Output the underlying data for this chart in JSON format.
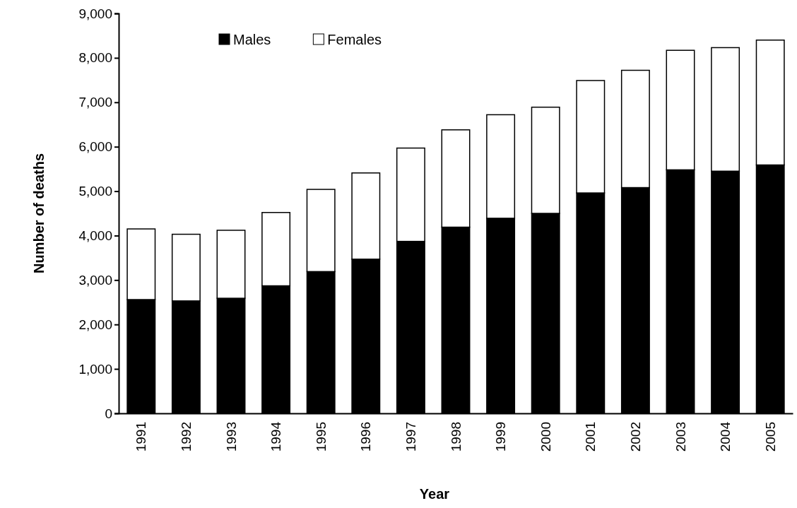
{
  "chart_data": {
    "type": "bar",
    "stacked": true,
    "xlabel": "Year",
    "ylabel": "Number of deaths",
    "categories": [
      "1991",
      "1992",
      "1993",
      "1994",
      "1995",
      "1996",
      "1997",
      "1998",
      "1999",
      "2000",
      "2001",
      "2002",
      "2003",
      "2004",
      "2005"
    ],
    "series": [
      {
        "name": "Males",
        "color": "#000000",
        "values": [
          2560,
          2530,
          2590,
          2870,
          3190,
          3470,
          3870,
          4190,
          4390,
          4500,
          4960,
          5080,
          5480,
          5450,
          5590
        ]
      },
      {
        "name": "Females",
        "color": "#ffffff",
        "values": [
          1590,
          1500,
          1530,
          1650,
          1850,
          1940,
          2100,
          2190,
          2330,
          2390,
          2530,
          2640,
          2690,
          2780,
          2810
        ]
      }
    ],
    "ylim": [
      0,
      9000
    ],
    "yticks": [
      {
        "value": 0,
        "label": "0"
      },
      {
        "value": 1000,
        "label": "1,000"
      },
      {
        "value": 2000,
        "label": "2,000"
      },
      {
        "value": 3000,
        "label": "3,000"
      },
      {
        "value": 4000,
        "label": "4,000"
      },
      {
        "value": 5000,
        "label": "5,000"
      },
      {
        "value": 6000,
        "label": "6,000"
      },
      {
        "value": 7000,
        "label": "7,000"
      },
      {
        "value": 8000,
        "label": "8,000"
      },
      {
        "value": 9000,
        "label": "9,000"
      }
    ],
    "legend": "top",
    "grid": false
  }
}
